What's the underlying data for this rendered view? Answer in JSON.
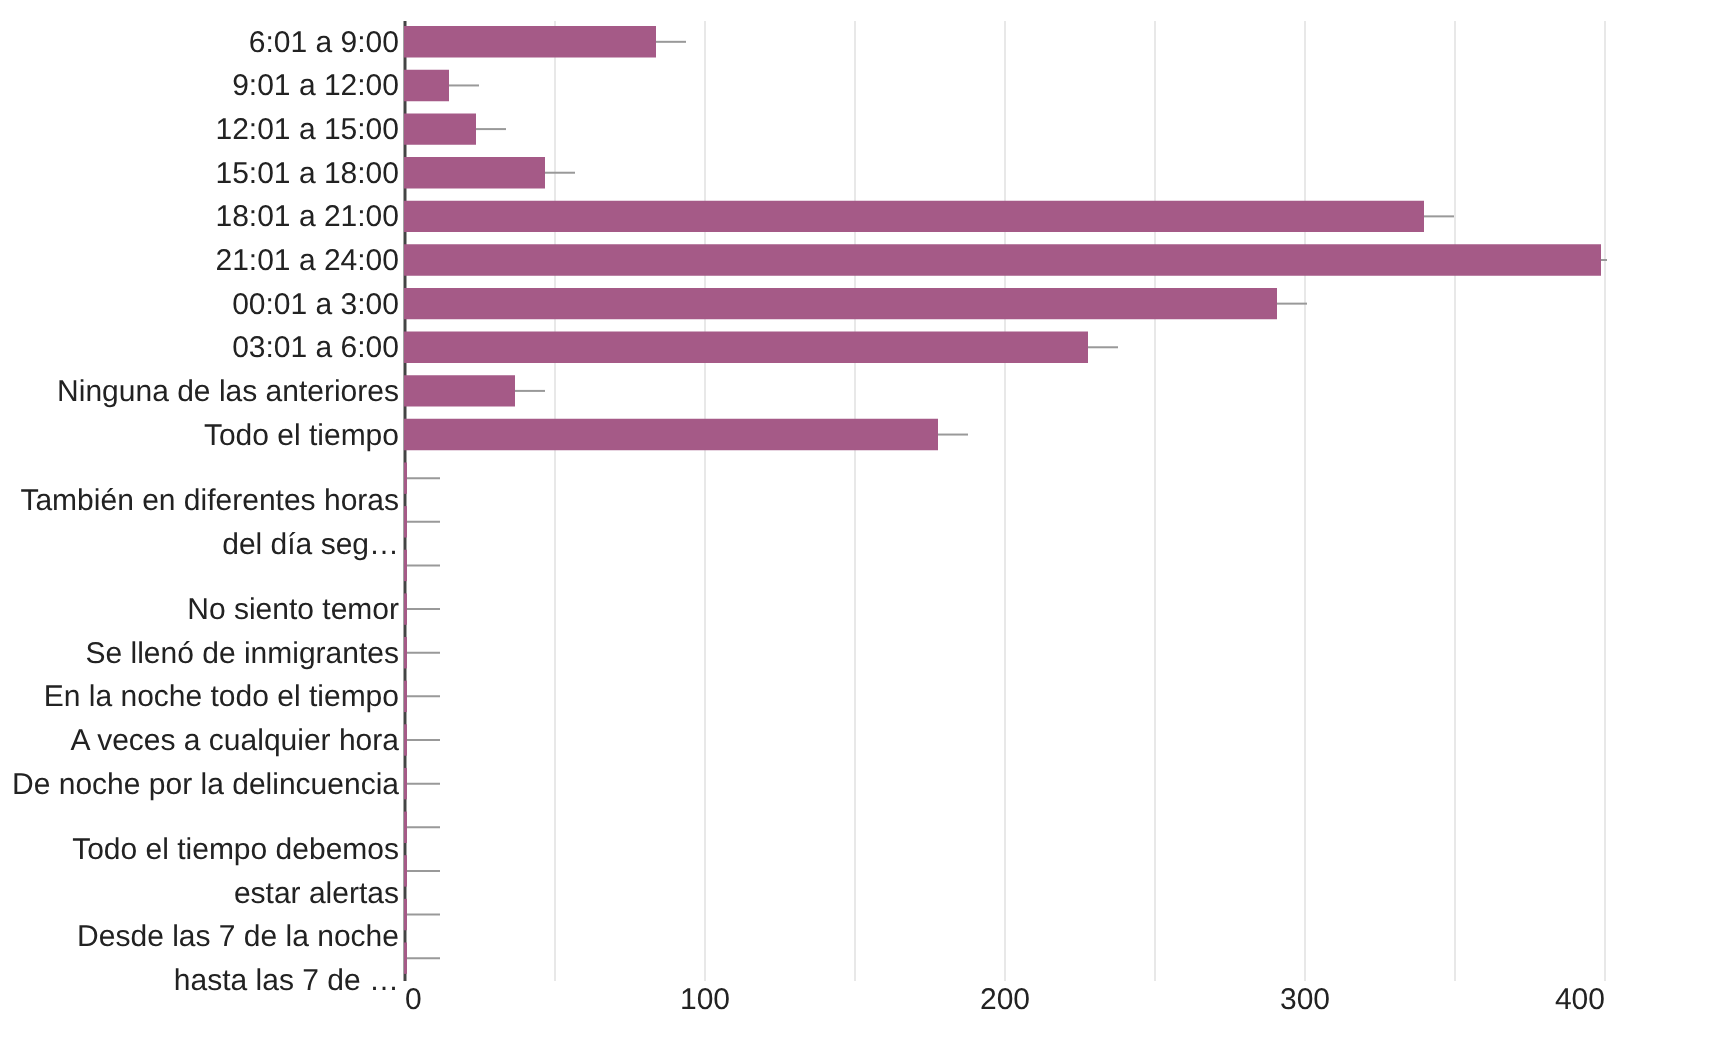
{
  "chart_data": {
    "type": "bar",
    "orientation": "horizontal",
    "categories": [
      "6:01 a 9:00",
      "9:01 a 12:00",
      "12:01 a 15:00",
      "15:01 a 18:00",
      "18:01 a 21:00",
      "21:01 a 24:00",
      "00:01 a 3:00",
      "03:01 a 6:00",
      "Ninguna de las anteriores",
      "Todo el tiempo",
      null,
      "También en diferentes horas del día seg…",
      null,
      "No siento temor",
      "Se llenó de inmigrantes",
      "En la noche todo el tiempo",
      "A veces a cualquier hora",
      "De noche por la delincuencia",
      null,
      "Todo el tiempo debemos estar alertas",
      null,
      "Desde las 7 de la noche hasta las 7 de …"
    ],
    "series": [
      {
        "color": "#a55a87",
        "values": [
          84,
          15,
          24,
          47,
          340,
          399,
          291,
          228,
          37,
          178,
          1,
          1,
          1,
          1,
          1,
          1,
          1,
          1,
          1,
          1,
          1,
          1
        ],
        "errors": [
          [
            84,
            94
          ],
          [
            15,
            25
          ],
          [
            24,
            34
          ],
          [
            47,
            57
          ],
          [
            340,
            350
          ],
          [
            399,
            401
          ],
          [
            291,
            301
          ],
          [
            228,
            238
          ],
          [
            37,
            47
          ],
          [
            178,
            188
          ],
          [
            1,
            12
          ],
          [
            1,
            12
          ],
          [
            1,
            12
          ],
          [
            1,
            12
          ],
          [
            1,
            12
          ],
          [
            1,
            12
          ],
          [
            1,
            12
          ],
          [
            1,
            12
          ],
          [
            1,
            12
          ],
          [
            1,
            12
          ],
          [
            1,
            12
          ],
          [
            1,
            12
          ]
        ]
      }
    ],
    "xlim": [
      0,
      400
    ],
    "xticks": [
      0,
      {
        "value": 50,
        "label": null
      },
      100,
      {
        "value": 150,
        "label": null
      },
      200,
      {
        "value": 250,
        "label": null
      },
      300,
      {
        "value": 350,
        "label": null
      },
      400
    ],
    "grid": "x"
  }
}
